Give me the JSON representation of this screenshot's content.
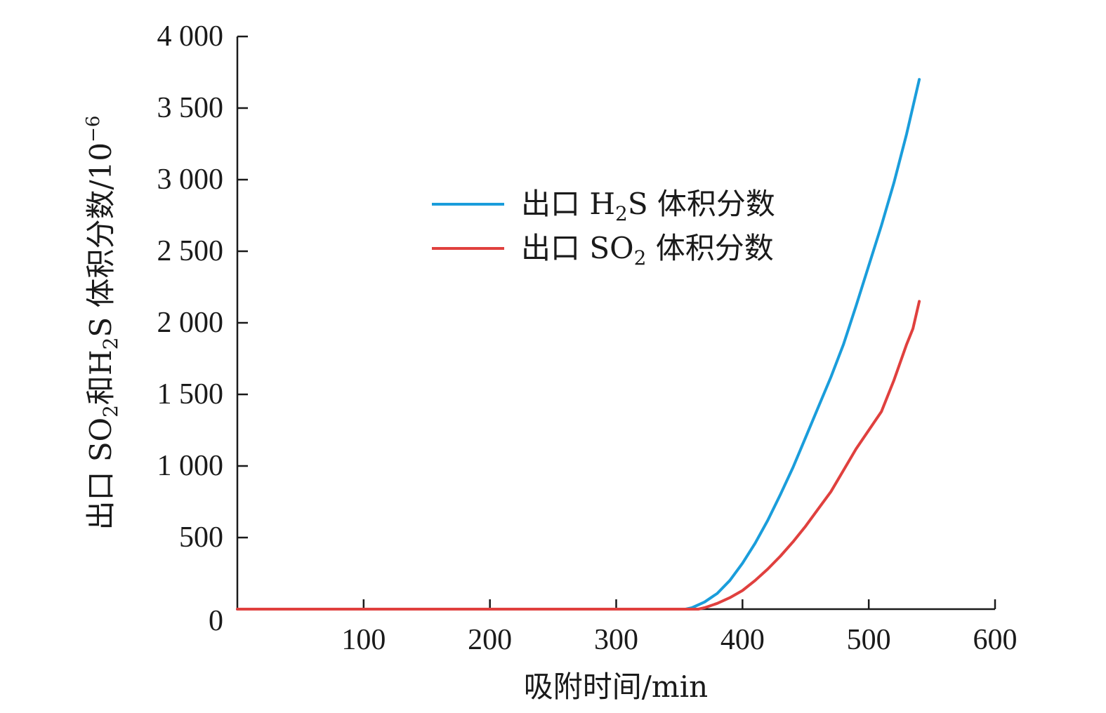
{
  "chart_data": {
    "type": "line",
    "xlabel": "吸附时间/min",
    "ylabel": {
      "prefix": "出口 SO",
      "sub1": "2",
      "mid": "和H",
      "sub2": "2",
      "suffix": "S 体积分数/10",
      "sup": "−6"
    },
    "xlim": [
      0,
      600
    ],
    "ylim": [
      0,
      4000
    ],
    "x_ticks": [
      100,
      200,
      300,
      400,
      500,
      600
    ],
    "x_tick_labels": [
      "100",
      "200",
      "300",
      "400",
      "500",
      "600"
    ],
    "y_ticks": [
      0,
      500,
      1000,
      1500,
      2000,
      2500,
      3000,
      3500,
      4000
    ],
    "y_tick_labels": [
      "0",
      "500",
      "1 000",
      "1 500",
      "2 000",
      "2 500",
      "3 000",
      "3 500",
      "4 000"
    ],
    "legend_position": "upper-center",
    "series": [
      {
        "key": "h2s",
        "name": {
          "prefix": "出口 H",
          "sub": "2",
          "suffix": "S 体积分数"
        },
        "color": "#1a9ddb",
        "points": [
          [
            0,
            0
          ],
          [
            355,
            0
          ],
          [
            360,
            10
          ],
          [
            370,
            50
          ],
          [
            380,
            110
          ],
          [
            390,
            200
          ],
          [
            400,
            320
          ],
          [
            410,
            460
          ],
          [
            420,
            620
          ],
          [
            430,
            800
          ],
          [
            440,
            990
          ],
          [
            450,
            1200
          ],
          [
            460,
            1410
          ],
          [
            470,
            1620
          ],
          [
            480,
            1850
          ],
          [
            490,
            2120
          ],
          [
            500,
            2400
          ],
          [
            510,
            2680
          ],
          [
            520,
            2980
          ],
          [
            530,
            3320
          ],
          [
            540,
            3700
          ]
        ]
      },
      {
        "key": "so2",
        "name": {
          "prefix": "出口 SO",
          "sub": "2",
          "suffix": " 体积分数"
        },
        "color": "#e0403e",
        "points": [
          [
            0,
            0
          ],
          [
            365,
            0
          ],
          [
            370,
            10
          ],
          [
            380,
            40
          ],
          [
            390,
            80
          ],
          [
            400,
            130
          ],
          [
            410,
            200
          ],
          [
            420,
            280
          ],
          [
            430,
            370
          ],
          [
            440,
            470
          ],
          [
            450,
            580
          ],
          [
            460,
            700
          ],
          [
            470,
            820
          ],
          [
            480,
            970
          ],
          [
            490,
            1120
          ],
          [
            500,
            1250
          ],
          [
            510,
            1380
          ],
          [
            520,
            1600
          ],
          [
            530,
            1850
          ],
          [
            535,
            1960
          ],
          [
            540,
            2150
          ]
        ]
      }
    ]
  }
}
